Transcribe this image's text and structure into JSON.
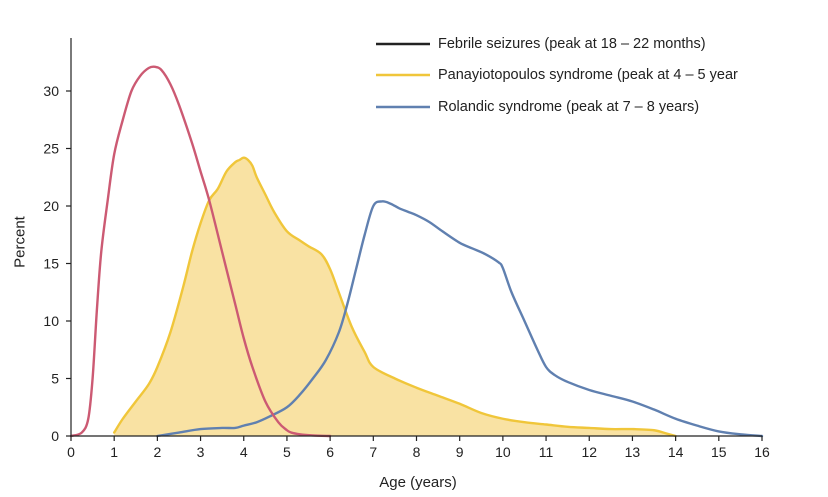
{
  "chart_data": {
    "type": "area",
    "xlabel": "Age (years)",
    "ylabel": "Percent",
    "xlim": [
      0,
      16
    ],
    "ylim": [
      0,
      33
    ],
    "xticks": [
      0,
      1,
      2,
      3,
      4,
      5,
      6,
      7,
      8,
      9,
      10,
      11,
      12,
      13,
      14,
      15,
      16
    ],
    "yticks": [
      0,
      5,
      10,
      15,
      20,
      25,
      30
    ],
    "grid": false,
    "legend_position": "top-right",
    "series": [
      {
        "name": "Febrile seizures (peak at 18 – 22 months)",
        "color": "#cc5a73",
        "filled": false,
        "x": [
          0,
          0.25,
          0.4,
          0.5,
          0.6,
          0.7,
          0.85,
          1.0,
          1.2,
          1.4,
          1.6,
          1.8,
          1.95,
          2.1,
          2.3,
          2.5,
          2.8,
          3.0,
          3.2,
          3.5,
          3.8,
          4.0,
          4.2,
          4.5,
          4.8,
          5.0,
          5.1,
          5.3,
          5.6,
          6.0
        ],
        "y": [
          0,
          0.3,
          1.5,
          5,
          11,
          16,
          20.5,
          24.5,
          27.5,
          30,
          31.3,
          32,
          32.1,
          31.8,
          30.6,
          28.8,
          25.5,
          23,
          20.5,
          16,
          11.5,
          8.5,
          6,
          3,
          1.2,
          0.5,
          0.3,
          0.15,
          0.05,
          0
        ]
      },
      {
        "name": "Panayiotopoulos syndrome (peak at 4 – 5 year",
        "color": "#f0c63a",
        "fill": "#f9e2a3",
        "filled": true,
        "x": [
          1.0,
          1.2,
          1.5,
          1.8,
          2.0,
          2.3,
          2.6,
          2.8,
          3.0,
          3.2,
          3.4,
          3.6,
          3.8,
          3.9,
          4.0,
          4.1,
          4.2,
          4.3,
          4.5,
          4.7,
          5.0,
          5.3,
          5.5,
          5.8,
          6.0,
          6.2,
          6.5,
          6.8,
          7.0,
          7.5,
          8.0,
          8.5,
          9.0,
          9.5,
          10.0,
          10.5,
          11.0,
          11.5,
          12.0,
          12.5,
          13.0,
          13.5,
          13.8,
          14.0
        ],
        "y": [
          0.3,
          1.5,
          3,
          4.5,
          6,
          9,
          13,
          16,
          18.5,
          20.5,
          21.5,
          23,
          23.8,
          24,
          24.2,
          24,
          23.5,
          22.5,
          21,
          19.5,
          17.8,
          17,
          16.5,
          15.8,
          14.5,
          12.5,
          9.5,
          7.3,
          6,
          5,
          4.2,
          3.5,
          2.8,
          2,
          1.5,
          1.2,
          1,
          0.8,
          0.7,
          0.6,
          0.6,
          0.5,
          0.2,
          0
        ]
      },
      {
        "name": "Rolandic syndrome (peak at 7 – 8 years)",
        "color": "#6080b0",
        "filled": false,
        "x": [
          2.0,
          2.5,
          3.0,
          3.5,
          3.8,
          4.0,
          4.3,
          4.6,
          5.0,
          5.3,
          5.6,
          5.9,
          6.2,
          6.4,
          6.6,
          6.8,
          7.0,
          7.2,
          7.4,
          7.6,
          7.8,
          8.0,
          8.3,
          8.6,
          9.0,
          9.3,
          9.6,
          9.9,
          10.0,
          10.2,
          10.5,
          10.8,
          11.0,
          11.2,
          11.5,
          12.0,
          12.5,
          13.0,
          13.5,
          14.0,
          14.5,
          15.0,
          15.5,
          16.0
        ],
        "y": [
          0,
          0.3,
          0.6,
          0.7,
          0.7,
          0.9,
          1.2,
          1.7,
          2.5,
          3.6,
          5,
          6.6,
          9,
          11.5,
          14.5,
          17.5,
          20,
          20.4,
          20.2,
          19.8,
          19.5,
          19.2,
          18.6,
          17.8,
          16.8,
          16.3,
          15.8,
          15.1,
          14.6,
          12.5,
          10,
          7.5,
          6,
          5.3,
          4.7,
          4,
          3.5,
          3,
          2.3,
          1.5,
          0.9,
          0.4,
          0.15,
          0
        ]
      }
    ]
  }
}
